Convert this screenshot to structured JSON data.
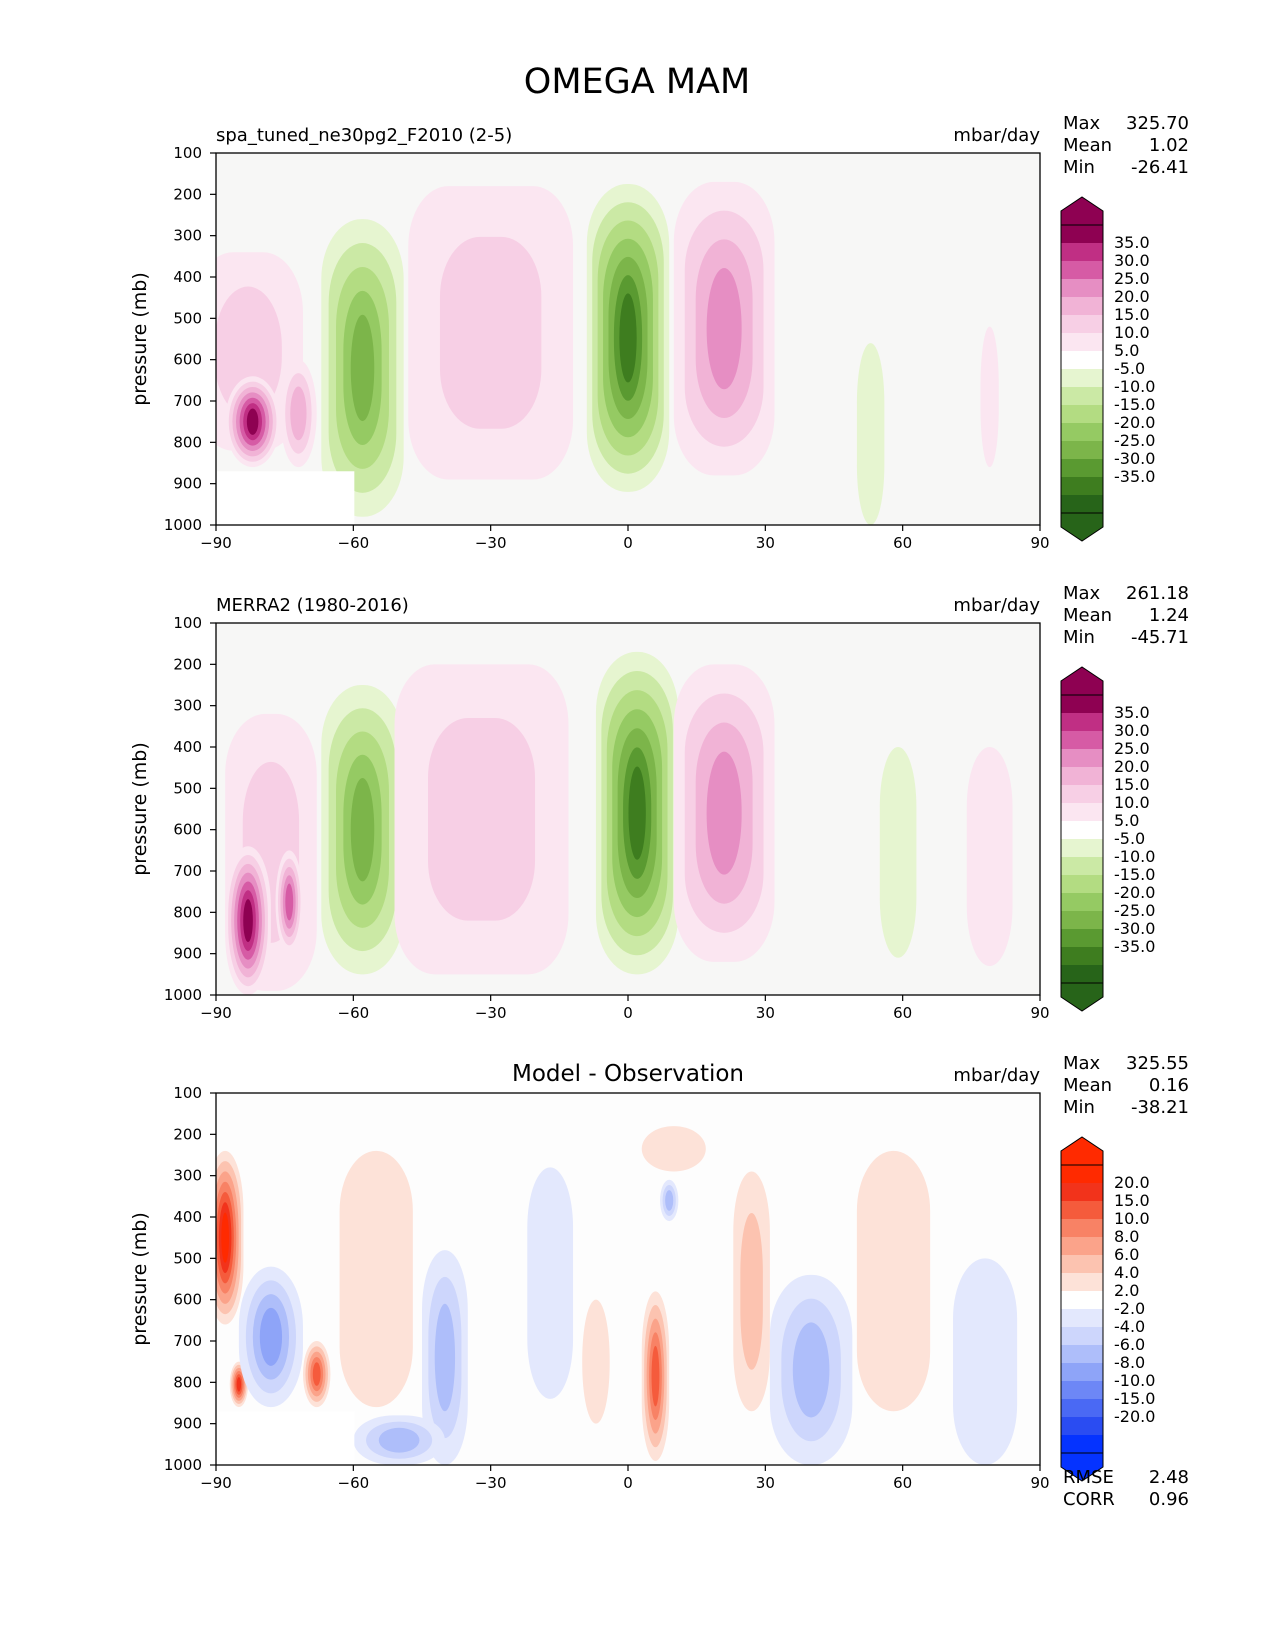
{
  "figure": {
    "title": "OMEGA MAM"
  },
  "colors": {
    "field_bg": "#f7f7f6",
    "diff_bg": "#fdfdfd",
    "pinks": [
      "#fbe6f1",
      "#f7cfe5",
      "#f1b3d6",
      "#e68ec3",
      "#d65ba5",
      "#c02f84",
      "#8e0152"
    ],
    "greens": [
      "#e6f5d0",
      "#cbe9a5",
      "#b3dc82",
      "#95ca63",
      "#7cb54a",
      "#5a9a31",
      "#3e7d1f",
      "#276419"
    ],
    "reds": [
      "#fde2d8",
      "#fcc3b0",
      "#fba38a",
      "#f88265",
      "#f55b3c",
      "#f2331b",
      "#ff2a00"
    ],
    "blues": [
      "#e3e8fd",
      "#cdd6fc",
      "#aebefa",
      "#8ea4f8",
      "#6d87f6",
      "#4a69f4",
      "#2a4cf2",
      "#0533ff"
    ]
  },
  "chart_data": [
    {
      "type": "contourf",
      "panel": "test",
      "title_left": "spa_tuned_ne30pg2_F2010 (2-5)",
      "title_center": "",
      "title_right": "mbar/day",
      "xlabel": "",
      "ylabel": "pressure (mb)",
      "xlim": [
        -90,
        90
      ],
      "ylim": [
        1000,
        100
      ],
      "x_ticks": [
        -90,
        -60,
        -30,
        0,
        30,
        60,
        90
      ],
      "x_tick_labels": [
        "−90",
        "−60",
        "−30",
        "0",
        "30",
        "60",
        "90"
      ],
      "y_ticks": [
        100,
        200,
        300,
        400,
        500,
        600,
        700,
        800,
        900,
        1000
      ],
      "y_tick_labels": [
        "100",
        "200",
        "300",
        "400",
        "500",
        "600",
        "700",
        "800",
        "900",
        "1000"
      ],
      "stats": {
        "labels": [
          "Max",
          "Mean",
          "Min"
        ],
        "values": [
          "325.70",
          "1.02",
          "-26.41"
        ]
      },
      "colorbar": {
        "labels": [
          "35.0",
          "30.0",
          "25.0",
          "20.0",
          "15.0",
          "10.0",
          "5.0",
          "-5.0",
          "-10.0",
          "-15.0",
          "-20.0",
          "-25.0",
          "-30.0",
          "-35.0"
        ]
      },
      "features": [
        {
          "lat": -83,
          "p_top": 340,
          "p_bot": 820,
          "width": 12,
          "level": 2,
          "sign": 1
        },
        {
          "lat": -82,
          "p_top": 640,
          "p_bot": 860,
          "width": 6,
          "level": 7,
          "sign": 1
        },
        {
          "lat": -72,
          "p_top": 600,
          "p_bot": 860,
          "width": 4,
          "level": 3,
          "sign": 1
        },
        {
          "lat": -58,
          "p_top": 260,
          "p_bot": 980,
          "width": 9,
          "level": 5,
          "sign": -1
        },
        {
          "lat": -30,
          "p_top": 180,
          "p_bot": 890,
          "width": 18,
          "level": 2,
          "sign": 1
        },
        {
          "lat": 0,
          "p_top": 175,
          "p_bot": 920,
          "width": 9,
          "level": 7,
          "sign": -1
        },
        {
          "lat": 21,
          "p_top": 170,
          "p_bot": 880,
          "width": 11,
          "level": 4,
          "sign": 1
        },
        {
          "lat": 53,
          "p_top": 560,
          "p_bot": 1000,
          "width": 3,
          "level": 1,
          "sign": -1
        },
        {
          "lat": 79,
          "p_top": 520,
          "p_bot": 860,
          "width": 2,
          "level": 1,
          "sign": 1
        }
      ],
      "masked_below_p": 870,
      "masked_lat_range": [
        -90,
        -60
      ]
    },
    {
      "type": "contourf",
      "panel": "reference",
      "title_left": "MERRA2 (1980-2016)",
      "title_center": "",
      "title_right": "mbar/day",
      "xlabel": "",
      "ylabel": "pressure (mb)",
      "xlim": [
        -90,
        90
      ],
      "ylim": [
        1000,
        100
      ],
      "x_ticks": [
        -90,
        -60,
        -30,
        0,
        30,
        60,
        90
      ],
      "x_tick_labels": [
        "−90",
        "−60",
        "−30",
        "0",
        "30",
        "60",
        "90"
      ],
      "y_ticks": [
        100,
        200,
        300,
        400,
        500,
        600,
        700,
        800,
        900,
        1000
      ],
      "y_tick_labels": [
        "100",
        "200",
        "300",
        "400",
        "500",
        "600",
        "700",
        "800",
        "900",
        "1000"
      ],
      "stats": {
        "labels": [
          "Max",
          "Mean",
          "Min"
        ],
        "values": [
          "261.18",
          "1.24",
          "-45.71"
        ]
      },
      "colorbar": {
        "labels": [
          "35.0",
          "30.0",
          "25.0",
          "20.0",
          "15.0",
          "10.0",
          "5.0",
          "-5.0",
          "-10.0",
          "-15.0",
          "-20.0",
          "-25.0",
          "-30.0",
          "-35.0"
        ]
      },
      "features": [
        {
          "lat": -78,
          "p_top": 320,
          "p_bot": 990,
          "width": 10,
          "level": 2,
          "sign": 1
        },
        {
          "lat": -83,
          "p_top": 640,
          "p_bot": 1000,
          "width": 5,
          "level": 7,
          "sign": 1
        },
        {
          "lat": -74,
          "p_top": 650,
          "p_bot": 900,
          "width": 3,
          "level": 5,
          "sign": 1
        },
        {
          "lat": -58,
          "p_top": 250,
          "p_bot": 950,
          "width": 9,
          "level": 5,
          "sign": -1
        },
        {
          "lat": -32,
          "p_top": 200,
          "p_bot": 950,
          "width": 19,
          "level": 2,
          "sign": 1
        },
        {
          "lat": 2,
          "p_top": 170,
          "p_bot": 950,
          "width": 9,
          "level": 7,
          "sign": -1
        },
        {
          "lat": 21,
          "p_top": 200,
          "p_bot": 920,
          "width": 11,
          "level": 4,
          "sign": 1
        },
        {
          "lat": 59,
          "p_top": 400,
          "p_bot": 910,
          "width": 4,
          "level": 1,
          "sign": -1
        },
        {
          "lat": 79,
          "p_top": 400,
          "p_bot": 930,
          "width": 5,
          "level": 1,
          "sign": 1
        }
      ],
      "masked_below_p": null,
      "masked_lat_range": null
    },
    {
      "type": "contourf",
      "panel": "difference",
      "title_left": "",
      "title_center": "Model - Observation",
      "title_right": "mbar/day",
      "xlabel": "",
      "ylabel": "pressure (mb)",
      "xlim": [
        -90,
        90
      ],
      "ylim": [
        1000,
        100
      ],
      "x_ticks": [
        -90,
        -60,
        -30,
        0,
        30,
        60,
        90
      ],
      "x_tick_labels": [
        "−90",
        "−60",
        "−30",
        "0",
        "30",
        "60",
        "90"
      ],
      "y_ticks": [
        100,
        200,
        300,
        400,
        500,
        600,
        700,
        800,
        900,
        1000
      ],
      "y_tick_labels": [
        "100",
        "200",
        "300",
        "400",
        "500",
        "600",
        "700",
        "800",
        "900",
        "1000"
      ],
      "stats": {
        "labels": [
          "Max",
          "Mean",
          "Min"
        ],
        "values": [
          "325.55",
          "0.16",
          "-38.21"
        ]
      },
      "colorbar": {
        "labels": [
          "20.0",
          "15.0",
          "10.0",
          "8.0",
          "6.0",
          "4.0",
          "2.0",
          "-2.0",
          "-4.0",
          "-6.0",
          "-8.0",
          "-10.0",
          "-15.0",
          "-20.0"
        ]
      },
      "extra_stats": {
        "labels": [
          "RMSE",
          "CORR"
        ],
        "values": [
          "2.48",
          "0.96"
        ]
      },
      "features": [
        {
          "lat": -88,
          "p_top": 240,
          "p_bot": 660,
          "width": 4,
          "level": 7,
          "sign": 1
        },
        {
          "lat": -85,
          "p_top": 750,
          "p_bot": 860,
          "width": 2,
          "level": 6,
          "sign": 1
        },
        {
          "lat": -78,
          "p_top": 520,
          "p_bot": 860,
          "width": 7,
          "level": 4,
          "sign": -1
        },
        {
          "lat": -68,
          "p_top": 700,
          "p_bot": 860,
          "width": 3,
          "level": 5,
          "sign": 1
        },
        {
          "lat": -55,
          "p_top": 240,
          "p_bot": 860,
          "width": 8,
          "level": 1,
          "sign": 1
        },
        {
          "lat": -40,
          "p_top": 480,
          "p_bot": 1000,
          "width": 5,
          "level": 3,
          "sign": -1
        },
        {
          "lat": -50,
          "p_top": 880,
          "p_bot": 1000,
          "width": 10,
          "level": 3,
          "sign": -1
        },
        {
          "lat": -17,
          "p_top": 280,
          "p_bot": 840,
          "width": 5,
          "level": 1,
          "sign": -1
        },
        {
          "lat": -7,
          "p_top": 600,
          "p_bot": 900,
          "width": 3,
          "level": 1,
          "sign": 1
        },
        {
          "lat": 6,
          "p_top": 580,
          "p_bot": 990,
          "width": 3,
          "level": 5,
          "sign": 1
        },
        {
          "lat": 10,
          "p_top": 180,
          "p_bot": 290,
          "width": 7,
          "level": 1,
          "sign": 1
        },
        {
          "lat": 9,
          "p_top": 310,
          "p_bot": 410,
          "width": 2,
          "level": 3,
          "sign": -1
        },
        {
          "lat": 27,
          "p_top": 290,
          "p_bot": 870,
          "width": 4,
          "level": 2,
          "sign": 1
        },
        {
          "lat": 40,
          "p_top": 540,
          "p_bot": 1000,
          "width": 9,
          "level": 3,
          "sign": -1
        },
        {
          "lat": 58,
          "p_top": 240,
          "p_bot": 870,
          "width": 8,
          "level": 1,
          "sign": 1
        },
        {
          "lat": 78,
          "p_top": 500,
          "p_bot": 1000,
          "width": 7,
          "level": 1,
          "sign": -1
        }
      ],
      "masked_below_p": 870,
      "masked_lat_range": [
        -90,
        -60
      ]
    }
  ]
}
